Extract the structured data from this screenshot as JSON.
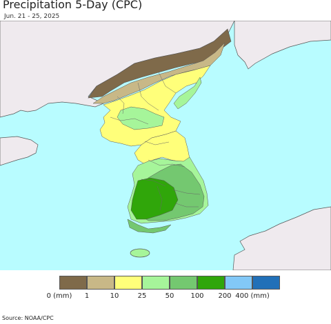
{
  "header": {
    "title": "Precipitation 5-Day (CPC)",
    "daterange": "Jun. 21 - 25, 2025"
  },
  "legend": {
    "bins": [
      {
        "color": "#7f6a4a"
      },
      {
        "color": "#c8b887"
      },
      {
        "color": "#ffff7a"
      },
      {
        "color": "#a6f59a"
      },
      {
        "color": "#74c870"
      },
      {
        "color": "#30a60a"
      },
      {
        "color": "#82c8f7"
      },
      {
        "color": "#2170b8"
      }
    ],
    "tick_labels": [
      "0 (mm)",
      "1",
      "10",
      "25",
      "50",
      "100",
      "200",
      "400 (mm)"
    ]
  },
  "footer": {
    "source": "Source: NOAA/CPC"
  },
  "colors": {
    "ocean": "#b8fcff",
    "land_nodata": "#efeaee",
    "border": "#555555"
  }
}
